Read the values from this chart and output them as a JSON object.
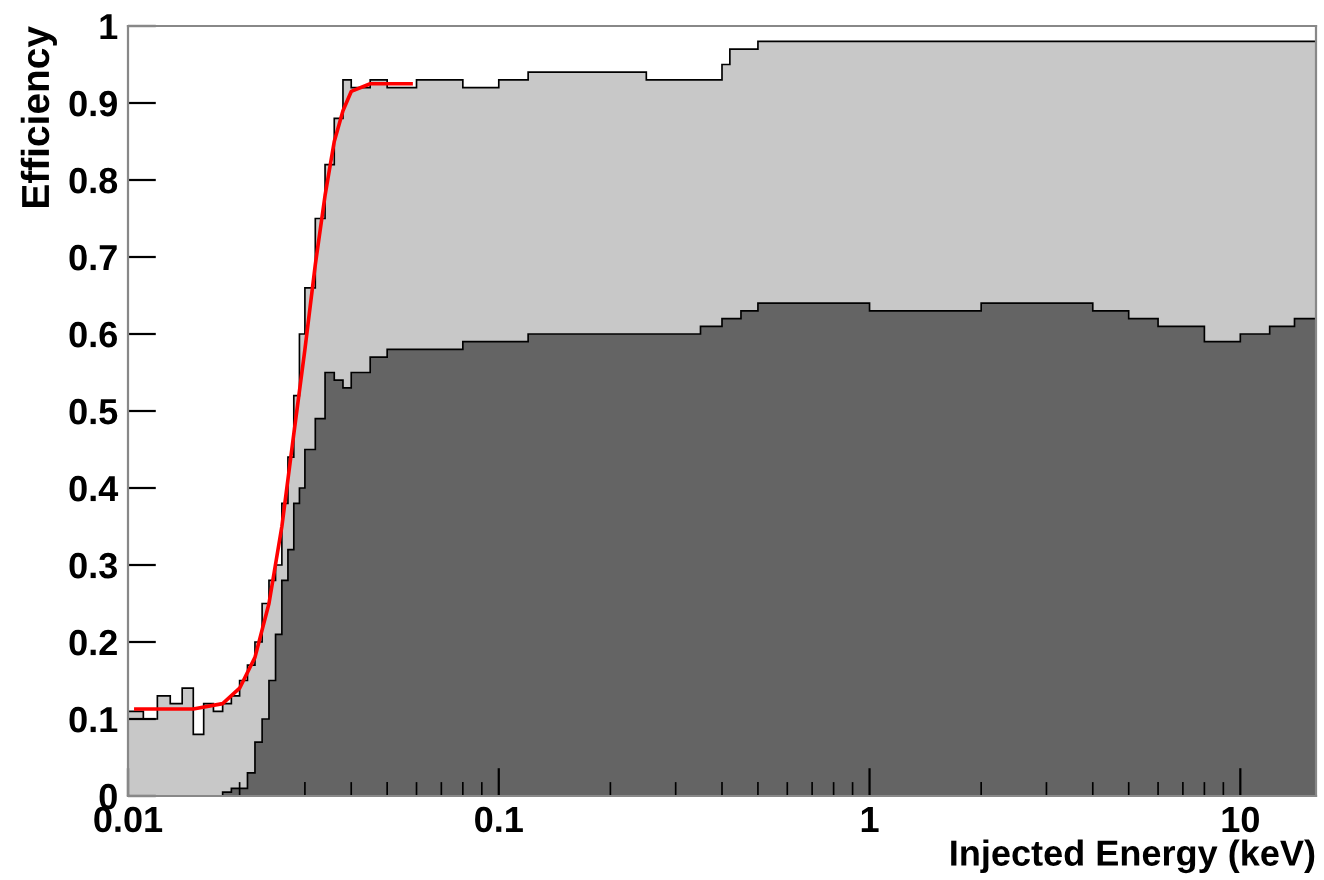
{
  "chart_data": {
    "type": "histogram",
    "xlabel": "Injected Energy (keV)",
    "ylabel": "Efficiency",
    "log": "x",
    "xlim": [
      0.01,
      16
    ],
    "xticks": [
      {
        "value": 0.01,
        "label": "0.01"
      },
      {
        "value": 0.1,
        "label": "0.1"
      },
      {
        "value": 1,
        "label": "1"
      },
      {
        "value": 10,
        "label": "10"
      }
    ],
    "ylim": [
      0,
      1
    ],
    "yticks": [
      0,
      0.1,
      0.2,
      0.3,
      0.4,
      0.5,
      0.6,
      0.7,
      0.8,
      0.9,
      1
    ],
    "grid": false,
    "bins": [
      0.01,
      0.011,
      0.012,
      0.013,
      0.014,
      0.015,
      0.016,
      0.017,
      0.018,
      0.019,
      0.02,
      0.021,
      0.022,
      0.023,
      0.024,
      0.025,
      0.026,
      0.027,
      0.028,
      0.029,
      0.03,
      0.032,
      0.034,
      0.036,
      0.038,
      0.04,
      0.045,
      0.05,
      0.06,
      0.07,
      0.08,
      0.1,
      0.12,
      0.15,
      0.2,
      0.25,
      0.3,
      0.35,
      0.4,
      0.42,
      0.45,
      0.5,
      0.6,
      0.8,
      1,
      1.5,
      2,
      3,
      4,
      5,
      6,
      8,
      10,
      12,
      14,
      16
    ],
    "series": [
      {
        "color": "#c8c8c8",
        "values": [
          0.11,
          0.1,
          0.13,
          0.12,
          0.14,
          0.08,
          0.12,
          0.11,
          0.12,
          0.13,
          0.15,
          0.17,
          0.2,
          0.25,
          0.28,
          0.3,
          0.38,
          0.44,
          0.52,
          0.6,
          0.66,
          0.75,
          0.82,
          0.88,
          0.93,
          0.92,
          0.93,
          0.92,
          0.93,
          0.93,
          0.92,
          0.93,
          0.94,
          0.94,
          0.94,
          0.93,
          0.93,
          0.93,
          0.95,
          0.97,
          0.97,
          0.98,
          0.98,
          0.98,
          0.98,
          0.98,
          0.98,
          0.98,
          0.98,
          0.98,
          0.98,
          0.98,
          0.98,
          0.98,
          0.98
        ]
      },
      {
        "color": "#646464",
        "values": [
          0,
          0,
          0,
          0,
          0,
          0,
          0,
          0,
          0.005,
          0.01,
          0.01,
          0.03,
          0.07,
          0.1,
          0.15,
          0.21,
          0.28,
          0.32,
          0.38,
          0.4,
          0.45,
          0.49,
          0.55,
          0.54,
          0.53,
          0.55,
          0.57,
          0.58,
          0.58,
          0.58,
          0.59,
          0.59,
          0.6,
          0.6,
          0.6,
          0.6,
          0.6,
          0.61,
          0.62,
          0.62,
          0.63,
          0.64,
          0.64,
          0.64,
          0.63,
          0.63,
          0.64,
          0.64,
          0.63,
          0.62,
          0.61,
          0.59,
          0.6,
          0.61,
          0.62
        ]
      },
      {
        "type": "line",
        "color": "#ff0000",
        "x": [
          0.0105,
          0.015,
          0.018,
          0.02,
          0.022,
          0.024,
          0.026,
          0.028,
          0.03,
          0.032,
          0.034,
          0.036,
          0.038,
          0.04,
          0.045,
          0.058
        ],
        "values": [
          0.113,
          0.113,
          0.12,
          0.14,
          0.18,
          0.25,
          0.35,
          0.47,
          0.58,
          0.69,
          0.78,
          0.85,
          0.89,
          0.915,
          0.925,
          0.925
        ]
      }
    ]
  }
}
